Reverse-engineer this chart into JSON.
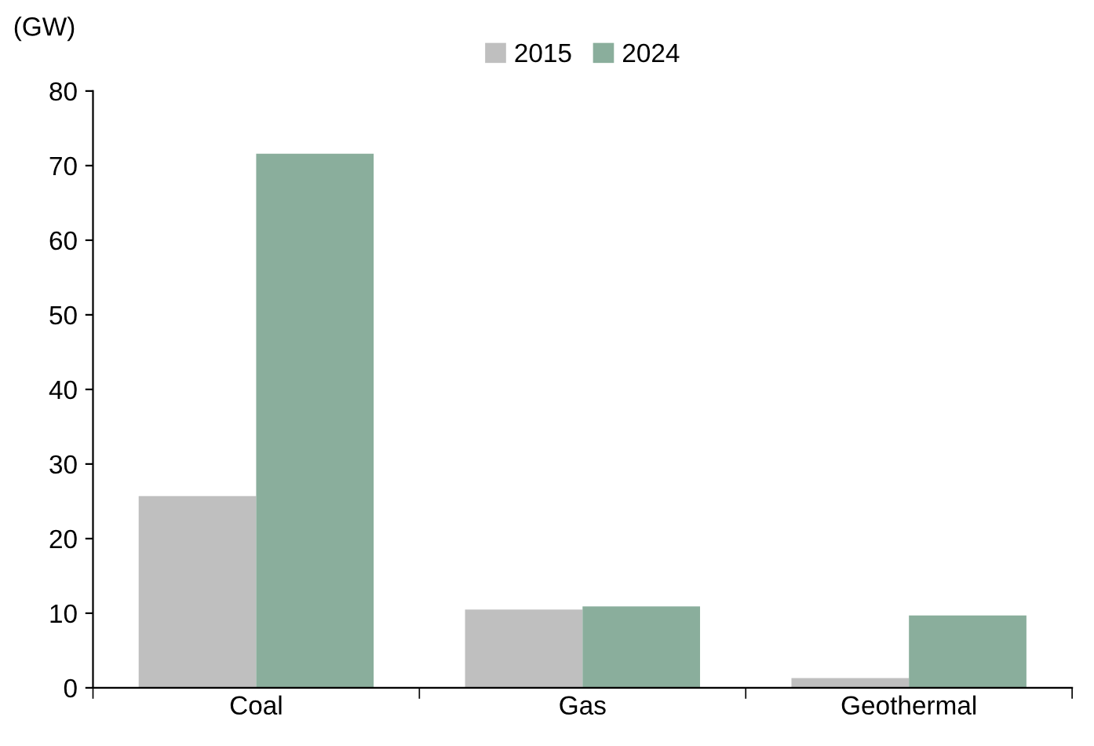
{
  "chart_data": {
    "type": "bar",
    "ylabel": "(GW)",
    "categories": [
      "Coal",
      "Gas",
      "Geothermal"
    ],
    "series": [
      {
        "name": "2015",
        "color": "#bfbfbf",
        "values": [
          25.7,
          10.5,
          1.3
        ]
      },
      {
        "name": "2024",
        "color": "#8aae9c",
        "values": [
          71.6,
          10.9,
          9.7
        ]
      }
    ],
    "ylim": [
      0,
      80
    ],
    "yticks": [
      0,
      10,
      20,
      30,
      40,
      50,
      60,
      70,
      80
    ],
    "grid": false,
    "legend": "top"
  }
}
